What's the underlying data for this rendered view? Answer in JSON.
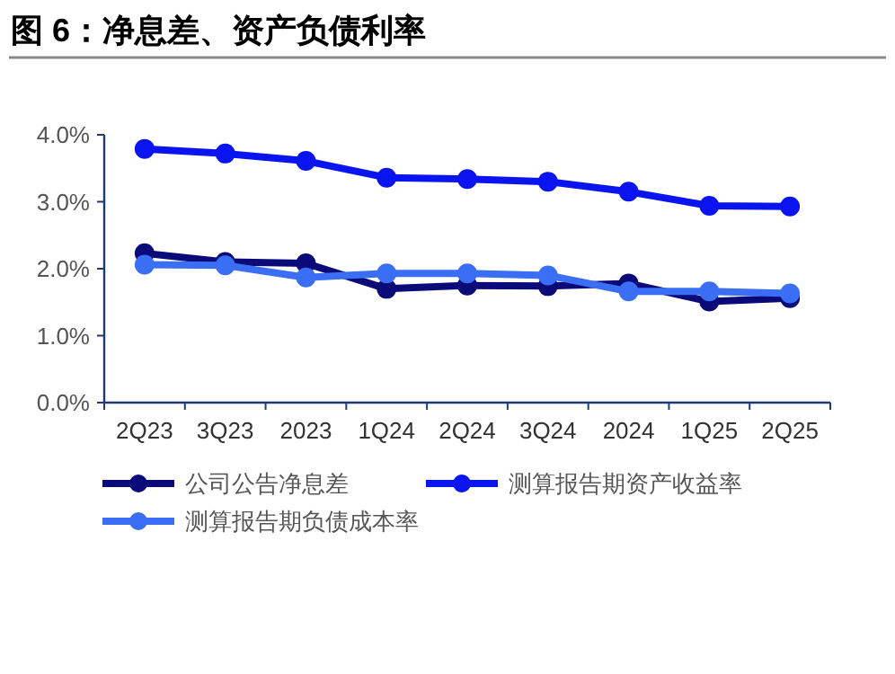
{
  "chart_data": {
    "type": "line",
    "title": "图 6：净息差、资产负债利率",
    "categories": [
      "2Q23",
      "3Q23",
      "2023",
      "1Q24",
      "2Q24",
      "3Q24",
      "2024",
      "1Q25",
      "2Q25"
    ],
    "series": [
      {
        "name": "公司公告净息差",
        "color": "#0a0a78",
        "values": [
          2.23,
          2.1,
          2.08,
          1.7,
          1.75,
          1.74,
          1.78,
          1.51,
          1.56
        ]
      },
      {
        "name": "测算报告期资产收益率",
        "color": "#0a14f0",
        "values": [
          3.79,
          3.72,
          3.61,
          3.36,
          3.34,
          3.3,
          3.15,
          2.94,
          2.93
        ]
      },
      {
        "name": "测算报告期负债成本率",
        "color": "#3a6ef5",
        "values": [
          2.06,
          2.05,
          1.87,
          1.93,
          1.93,
          1.9,
          1.66,
          1.66,
          1.63
        ]
      }
    ],
    "ylim": [
      0,
      4
    ],
    "yticks": [
      {
        "value": 0,
        "label": "0.0%"
      },
      {
        "value": 1,
        "label": "1.0%"
      },
      {
        "value": 2,
        "label": "2.0%"
      },
      {
        "value": 3,
        "label": "3.0%"
      },
      {
        "value": 4,
        "label": "4.0%"
      }
    ],
    "grid": false,
    "legend": "bottom",
    "marker": "circle",
    "line_style": "solid"
  }
}
